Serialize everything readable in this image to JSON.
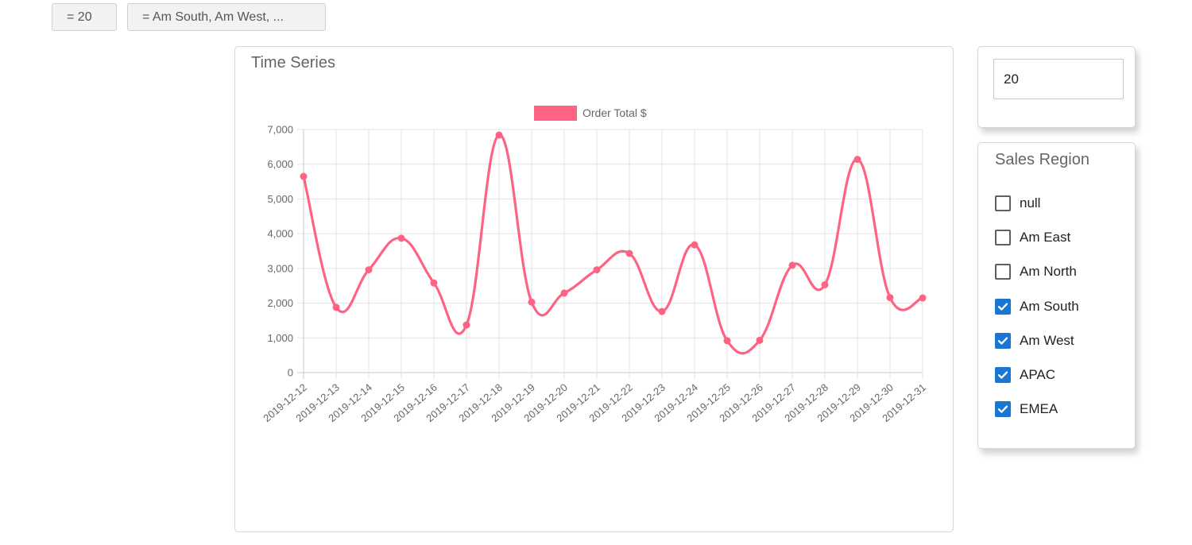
{
  "filters": {
    "chip_limit": "= 20",
    "chip_region": "= Am South, Am West, ..."
  },
  "chart_card": {
    "title": "Time Series"
  },
  "limit_widget": {
    "value": "20"
  },
  "region_widget": {
    "title": "Sales Region",
    "options": [
      {
        "label": "null",
        "checked": false
      },
      {
        "label": "Am East",
        "checked": false
      },
      {
        "label": "Am North",
        "checked": false
      },
      {
        "label": "Am South",
        "checked": true
      },
      {
        "label": "Am West",
        "checked": true
      },
      {
        "label": "APAC",
        "checked": true
      },
      {
        "label": "EMEA",
        "checked": true
      }
    ]
  },
  "colors": {
    "series": "#ff6384",
    "checkbox_checked": "#1976d2"
  },
  "chart_data": {
    "type": "line",
    "title": "Time Series",
    "xlabel": "",
    "ylabel": "",
    "x": [
      "2019-12-12",
      "2019-12-13",
      "2019-12-14",
      "2019-12-15",
      "2019-12-16",
      "2019-12-17",
      "2019-12-18",
      "2019-12-19",
      "2019-12-20",
      "2019-12-21",
      "2019-12-22",
      "2019-12-23",
      "2019-12-24",
      "2019-12-25",
      "2019-12-26",
      "2019-12-27",
      "2019-12-28",
      "2019-12-29",
      "2019-12-30",
      "2019-12-31"
    ],
    "series": [
      {
        "name": "Order Total $",
        "values": [
          5650,
          1880,
          2960,
          3870,
          2580,
          1370,
          6840,
          2030,
          2290,
          2960,
          3430,
          1760,
          3680,
          920,
          930,
          3090,
          2530,
          6140,
          2160,
          2150
        ]
      }
    ],
    "yticks": [
      "0",
      "1,000",
      "2,000",
      "3,000",
      "4,000",
      "5,000",
      "6,000",
      "7,000"
    ],
    "ylim": [
      0,
      7000
    ],
    "grid": true,
    "legend": "top"
  }
}
